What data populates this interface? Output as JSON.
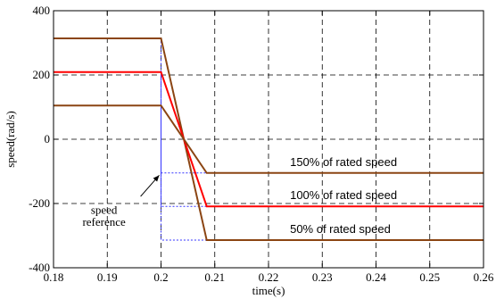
{
  "chart_data": {
    "type": "line",
    "xlabel": "time(s)",
    "ylabel": "speed(rad/s)",
    "xlim": [
      0.18,
      0.26
    ],
    "ylim": [
      -400,
      400
    ],
    "xticks": [
      "0.18",
      "0.19",
      "0.2",
      "0.21",
      "0.22",
      "0.23",
      "0.24",
      "0.25",
      "0.26"
    ],
    "yticks": [
      "400",
      "200",
      "0",
      "-200",
      "-400"
    ],
    "grid": true,
    "series": [
      {
        "name": "150% of rated speed",
        "color": "#8B4513",
        "x": [
          0.18,
          0.2,
          0.2085,
          0.26
        ],
        "y": [
          314,
          314,
          -314,
          -314
        ]
      },
      {
        "name": "100% of rated speed",
        "color": "#ff0000",
        "x": [
          0.18,
          0.2,
          0.2085,
          0.26
        ],
        "y": [
          209,
          209,
          -209,
          -209
        ]
      },
      {
        "name": "50% of rated speed",
        "color": "#8B4513",
        "x": [
          0.18,
          0.2,
          0.2085,
          0.26
        ],
        "y": [
          105,
          105,
          -105,
          -105
        ]
      }
    ],
    "reference_lines": [
      {
        "color": "#3333ff",
        "x": [
          0.18,
          0.2,
          0.2,
          0.26
        ],
        "y": [
          314,
          314,
          -314,
          -314
        ]
      },
      {
        "color": "#3333ff",
        "x": [
          0.18,
          0.2,
          0.2,
          0.26
        ],
        "y": [
          209,
          209,
          -209,
          -209
        ]
      },
      {
        "color": "#3333ff",
        "x": [
          0.18,
          0.2,
          0.2,
          0.26
        ],
        "y": [
          105,
          105,
          -105,
          -105
        ]
      }
    ],
    "annotation": {
      "text_line1": "speed",
      "text_line2": "reference"
    }
  }
}
